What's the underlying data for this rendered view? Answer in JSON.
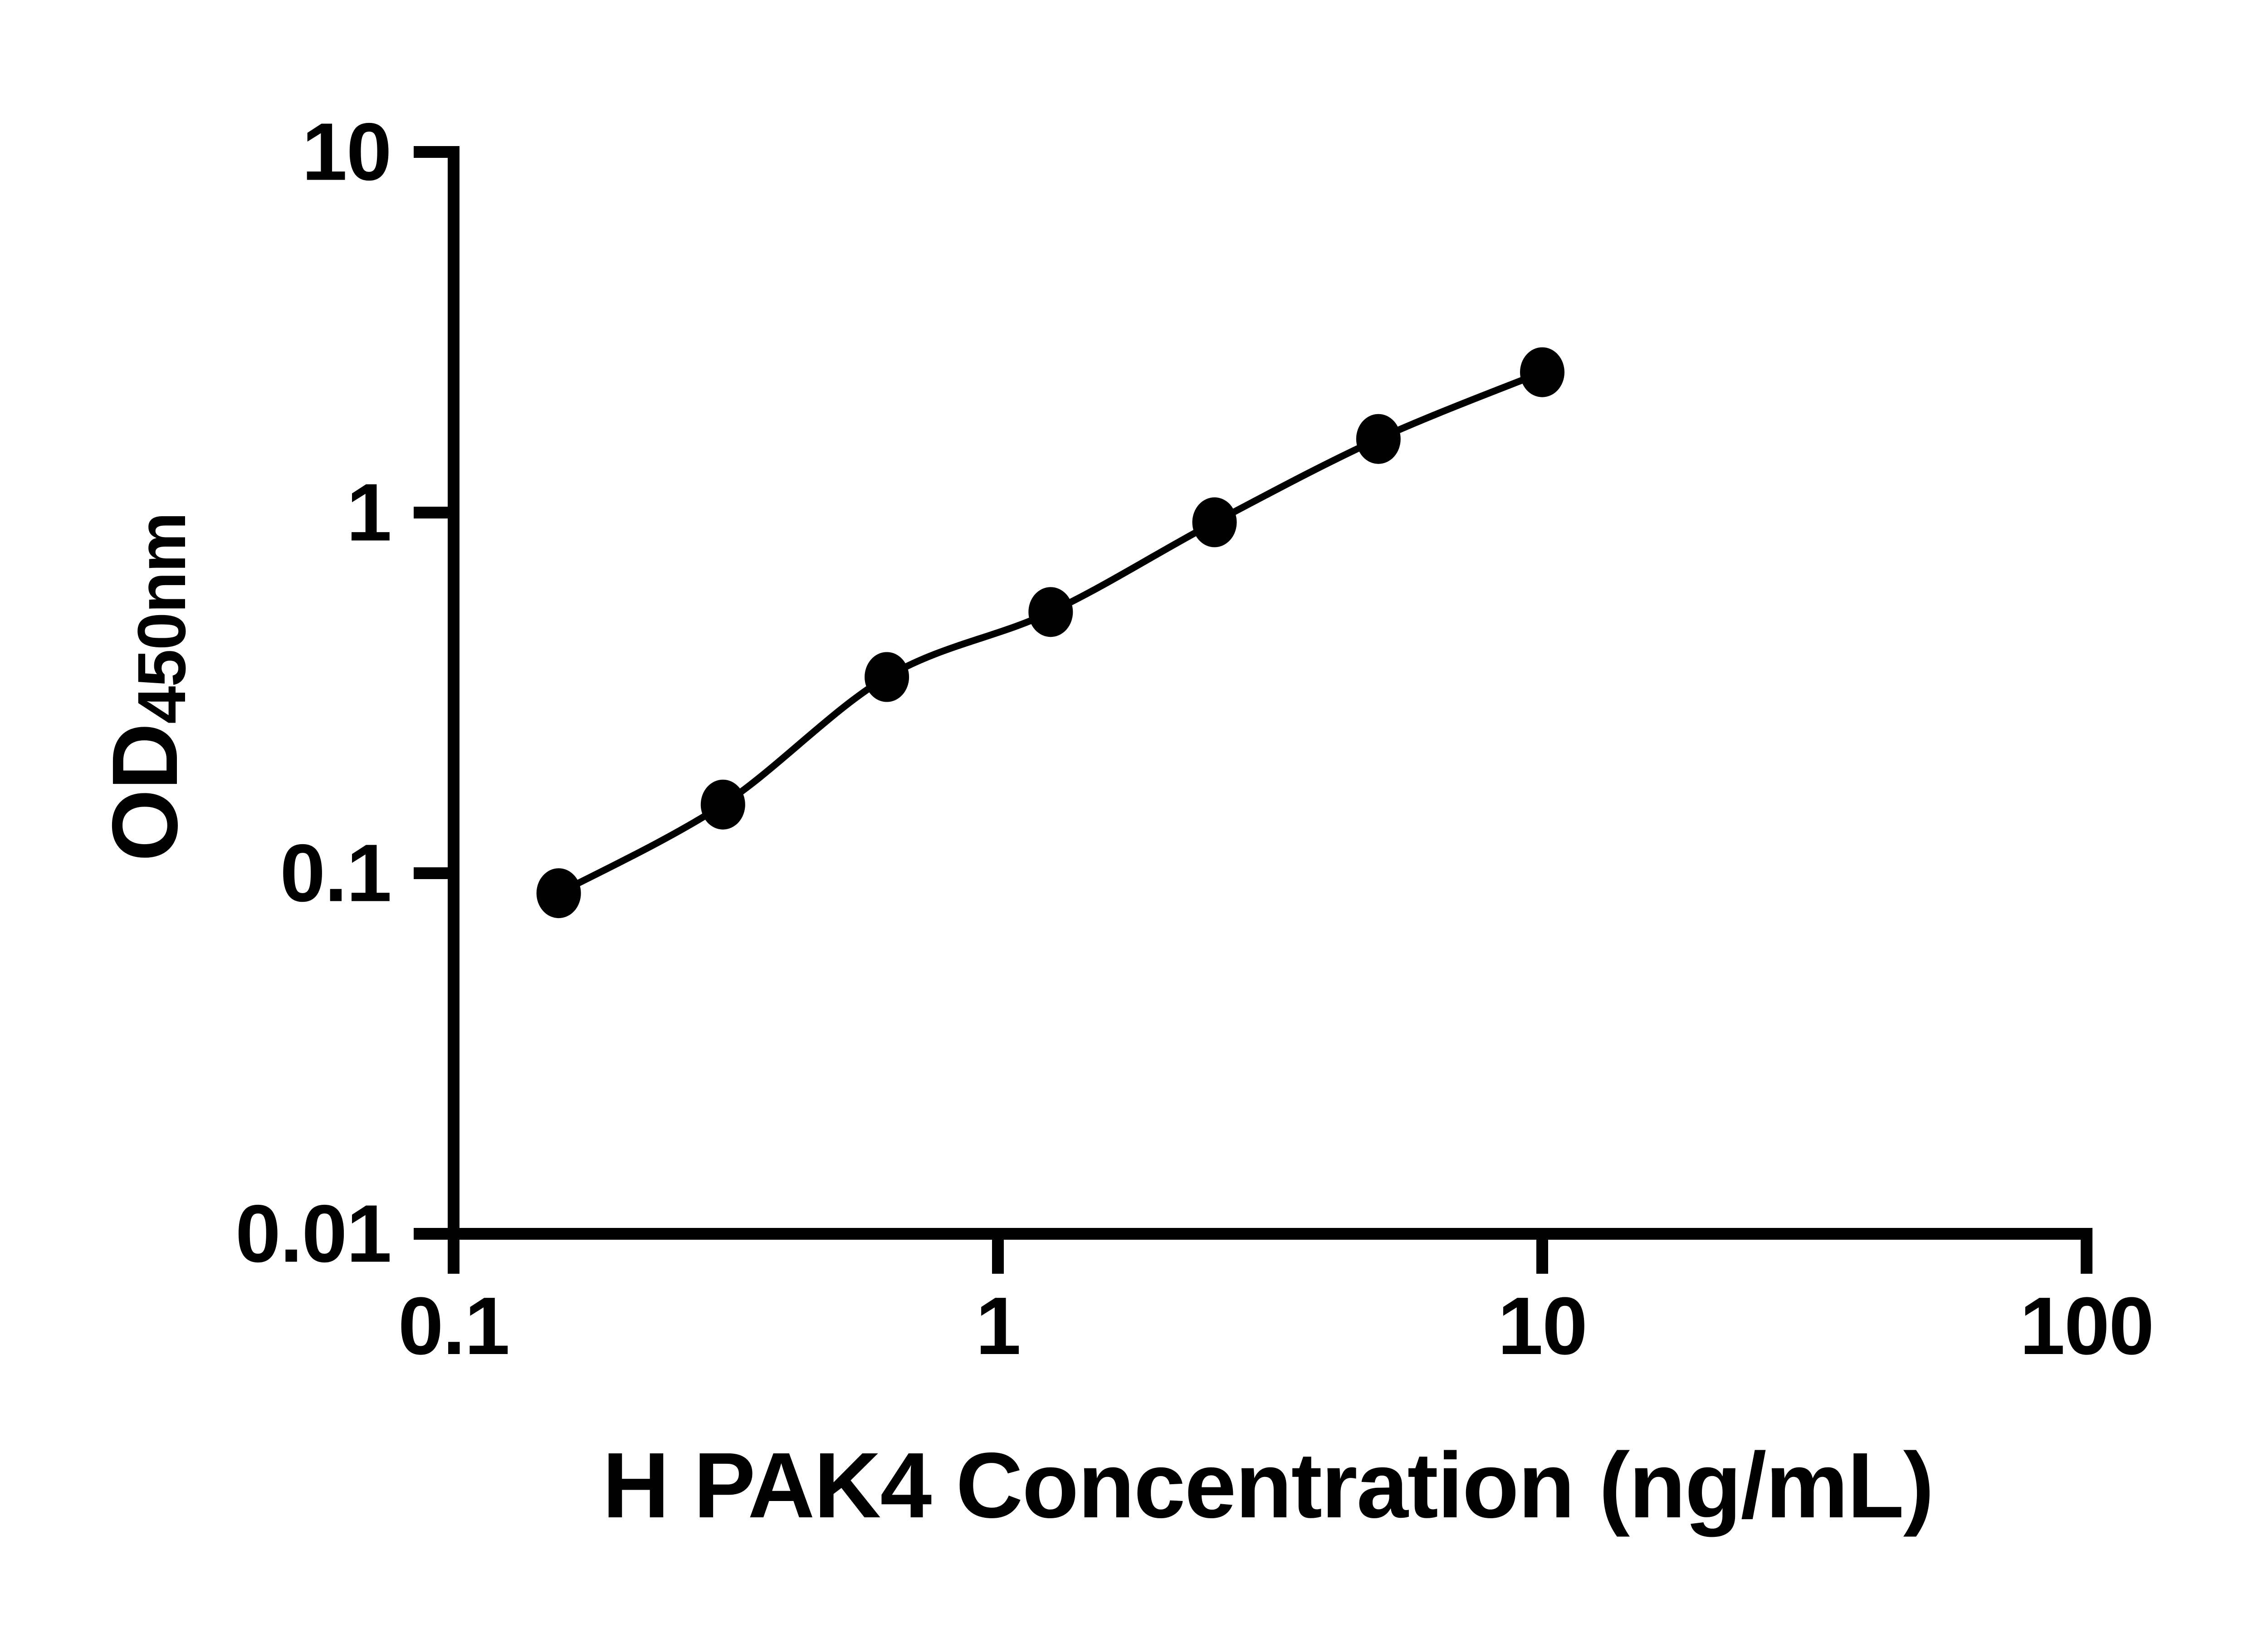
{
  "chart_data": {
    "type": "line",
    "title": "",
    "xlabel": "H PAK4 Concentration (ng/mL)",
    "ylabel": "OD",
    "ylabel_sub": "450nm",
    "x": [
      0.156,
      0.3125,
      0.625,
      1.25,
      2.5,
      5,
      10
    ],
    "y": [
      0.088,
      0.155,
      0.35,
      0.53,
      0.94,
      1.6,
      2.45
    ],
    "points": [
      {
        "concentration_ng_ml": 0.156,
        "od450": 0.088
      },
      {
        "concentration_ng_ml": 0.3125,
        "od450": 0.155
      },
      {
        "concentration_ng_ml": 0.625,
        "od450": 0.35
      },
      {
        "concentration_ng_ml": 1.25,
        "od450": 0.53
      },
      {
        "concentration_ng_ml": 2.5,
        "od450": 0.94
      },
      {
        "concentration_ng_ml": 5,
        "od450": 1.6
      },
      {
        "concentration_ng_ml": 10,
        "od450": 2.45
      }
    ],
    "xscale": "log",
    "yscale": "log",
    "xlim": [
      0.1,
      100
    ],
    "ylim": [
      0.01,
      10
    ],
    "x_ticks": {
      "values": [
        0.1,
        1,
        10,
        100
      ],
      "labels": [
        "0.1",
        "1",
        "10",
        "100"
      ]
    },
    "y_ticks": {
      "values": [
        0.01,
        0.1,
        1,
        10
      ],
      "labels": [
        "0.01",
        "0.1",
        "1",
        "10"
      ]
    },
    "grid": false,
    "legend": false,
    "marker": "filled-circle",
    "colors": {
      "line": "#000000",
      "marker": "#000000",
      "text": "#000000",
      "background": "#ffffff"
    }
  }
}
